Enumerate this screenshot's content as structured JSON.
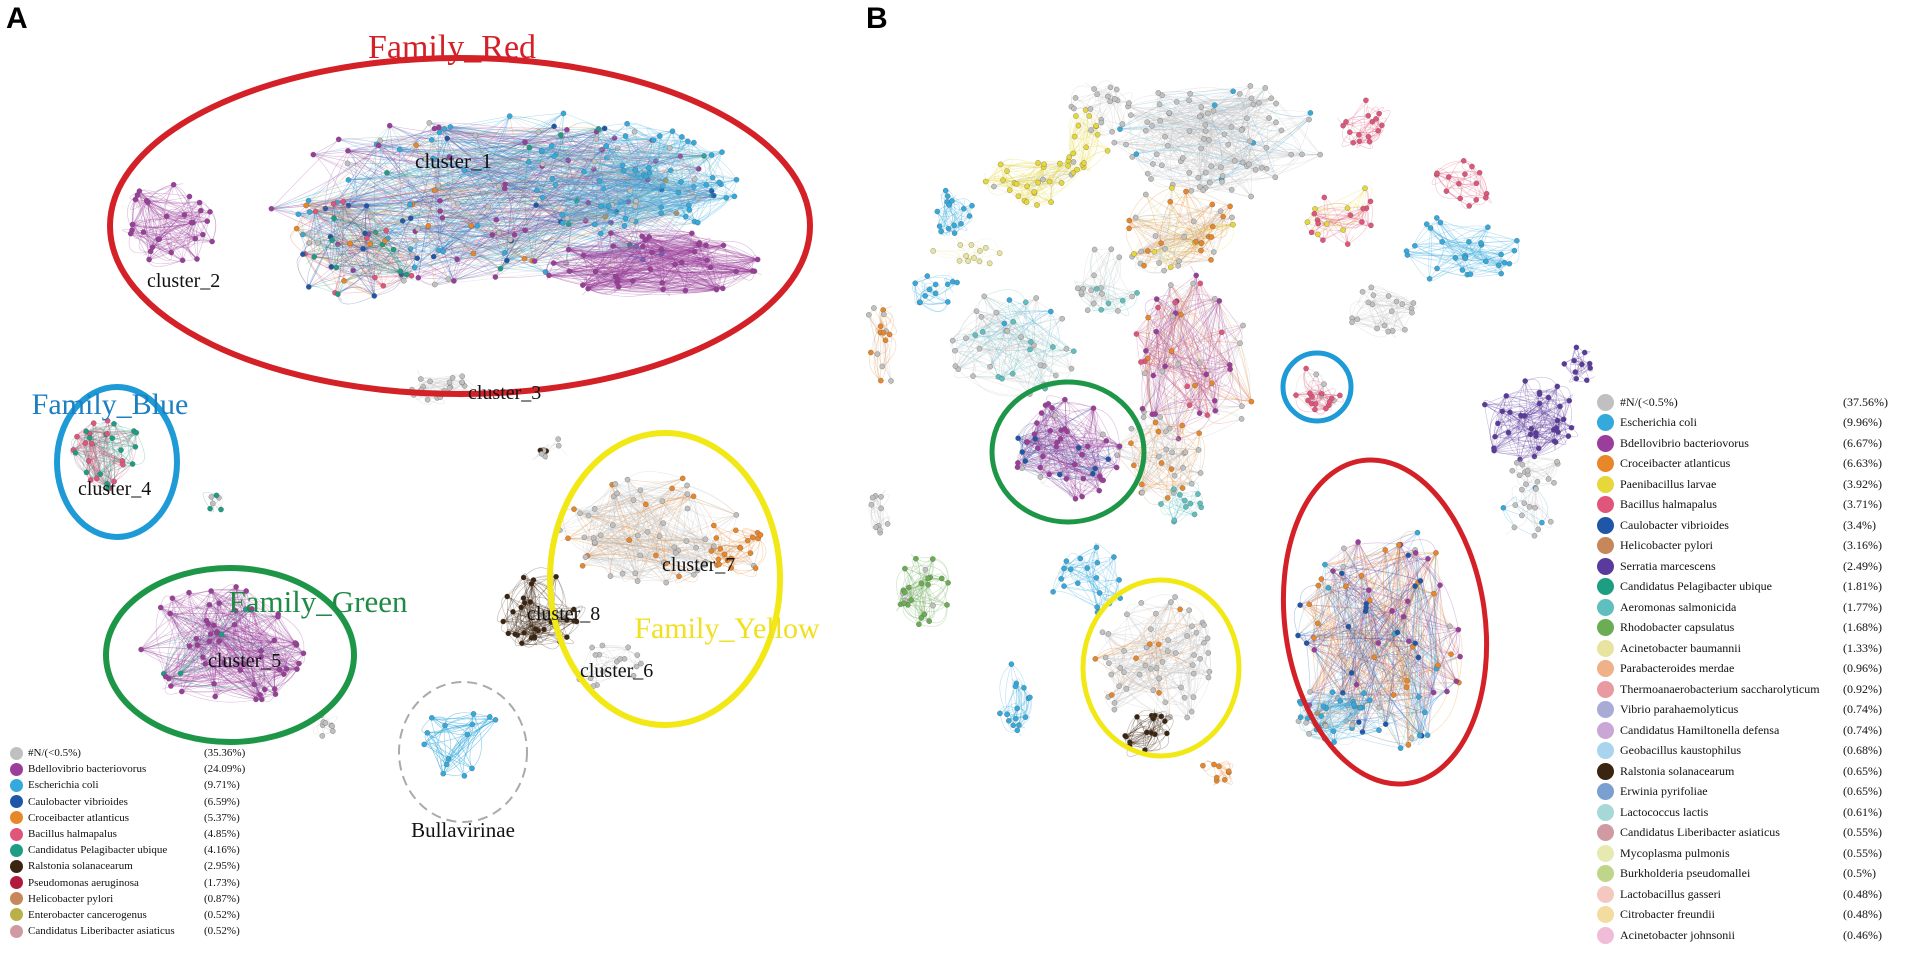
{
  "panel_a": {
    "letter": "A",
    "families": {
      "red": "Family_Red",
      "blue": "Family_Blue",
      "green": "Family_Green",
      "yellow": "Family_Yellow"
    },
    "clusters": [
      "cluster_1",
      "cluster_2",
      "cluster_3",
      "cluster_4",
      "cluster_5",
      "cluster_6",
      "cluster_7",
      "cluster_8"
    ],
    "subfamily_label": "Bullavirinae",
    "legend": [
      {
        "name": "#N/(<0.5%)",
        "pct": "(35.36%)",
        "color": "#c0c0c0"
      },
      {
        "name": "Bdellovibrio bacteriovorus",
        "pct": "(24.09%)",
        "color": "#9b3e9b"
      },
      {
        "name": "Escherichia coli",
        "pct": "(9.71%)",
        "color": "#34a9dc"
      },
      {
        "name": "Caulobacter vibrioides",
        "pct": "(6.59%)",
        "color": "#1f56a8"
      },
      {
        "name": "Croceibacter atlanticus",
        "pct": "(5.37%)",
        "color": "#e8862a"
      },
      {
        "name": "Bacillus halmapalus",
        "pct": "(4.85%)",
        "color": "#e0557a"
      },
      {
        "name": "Candidatus Pelagibacter ubique",
        "pct": "(4.16%)",
        "color": "#1d9e83"
      },
      {
        "name": "Ralstonia solanacearum",
        "pct": "(2.95%)",
        "color": "#3b2410"
      },
      {
        "name": "Pseudomonas aeruginosa",
        "pct": "(1.73%)",
        "color": "#b01a3c"
      },
      {
        "name": "Helicobacter pylori",
        "pct": "(0.87%)",
        "color": "#c8875a"
      },
      {
        "name": "Enterobacter cancerogenus",
        "pct": "(0.52%)",
        "color": "#b9b04a"
      },
      {
        "name": "Candidatus Liberibacter asiaticus",
        "pct": "(0.52%)",
        "color": "#cf9aa2"
      }
    ]
  },
  "panel_b": {
    "letter": "B",
    "legend": [
      {
        "name": "#N/(<0.5%)",
        "pct": "(37.56%)",
        "color": "#c0c0c0"
      },
      {
        "name": "Escherichia coli",
        "pct": "(9.96%)",
        "color": "#34a9dc"
      },
      {
        "name": "Bdellovibrio bacteriovorus",
        "pct": "(6.67%)",
        "color": "#9b3e9b"
      },
      {
        "name": "Croceibacter atlanticus",
        "pct": "(6.63%)",
        "color": "#e8862a"
      },
      {
        "name": "Paenibacillus larvae",
        "pct": "(3.92%)",
        "color": "#e6d83a"
      },
      {
        "name": "Bacillus halmapalus",
        "pct": "(3.71%)",
        "color": "#e0557a"
      },
      {
        "name": "Caulobacter vibrioides",
        "pct": "(3.4%)",
        "color": "#1f56a8"
      },
      {
        "name": "Helicobacter pylori",
        "pct": "(3.16%)",
        "color": "#c8875a"
      },
      {
        "name": "Serratia marcescens",
        "pct": "(2.49%)",
        "color": "#5b3a9e"
      },
      {
        "name": "Candidatus Pelagibacter ubique",
        "pct": "(1.81%)",
        "color": "#1d9e83"
      },
      {
        "name": "Aeromonas salmonicida",
        "pct": "(1.77%)",
        "color": "#5fbfbf"
      },
      {
        "name": "Rhodobacter capsulatus",
        "pct": "(1.68%)",
        "color": "#6aad52"
      },
      {
        "name": "Acinetobacter baumannii",
        "pct": "(1.33%)",
        "color": "#e8e4a0"
      },
      {
        "name": "Parabacteroides merdae",
        "pct": "(0.96%)",
        "color": "#f0b088"
      },
      {
        "name": "Thermoanaerobacterium saccharolyticum",
        "pct": "(0.92%)",
        "color": "#e99aa0"
      },
      {
        "name": "Vibrio parahaemolyticus",
        "pct": "(0.74%)",
        "color": "#aaaad6"
      },
      {
        "name": "Candidatus Hamiltonella defensa",
        "pct": "(0.74%)",
        "color": "#c9a6d6"
      },
      {
        "name": "Geobacillus kaustophilus",
        "pct": "(0.68%)",
        "color": "#a8d4ee"
      },
      {
        "name": "Ralstonia solanacearum",
        "pct": "(0.65%)",
        "color": "#3b2410"
      },
      {
        "name": "Erwinia pyrifoliae",
        "pct": "(0.65%)",
        "color": "#7aa0d2"
      },
      {
        "name": "Lactococcus lactis",
        "pct": "(0.61%)",
        "color": "#a6d8d8"
      },
      {
        "name": "Candidatus Liberibacter asiaticus",
        "pct": "(0.55%)",
        "color": "#cf9aa2"
      },
      {
        "name": "Mycoplasma pulmonis",
        "pct": "(0.55%)",
        "color": "#e6eab0"
      },
      {
        "name": "Burkholderia pseudomallei",
        "pct": "(0.5%)",
        "color": "#bfd68a"
      },
      {
        "name": "Lactobacillus gasseri",
        "pct": "(0.48%)",
        "color": "#f4c8c0"
      },
      {
        "name": "Citrobacter freundii",
        "pct": "(0.48%)",
        "color": "#f2dca0"
      },
      {
        "name": "Acinetobacter johnsonii",
        "pct": "(0.46%)",
        "color": "#f0bcd8"
      }
    ],
    "outline_colors": {
      "red": "#d42027",
      "blue": "#1e9ad6",
      "green": "#1e9648",
      "yellow": "#f2e816"
    }
  }
}
